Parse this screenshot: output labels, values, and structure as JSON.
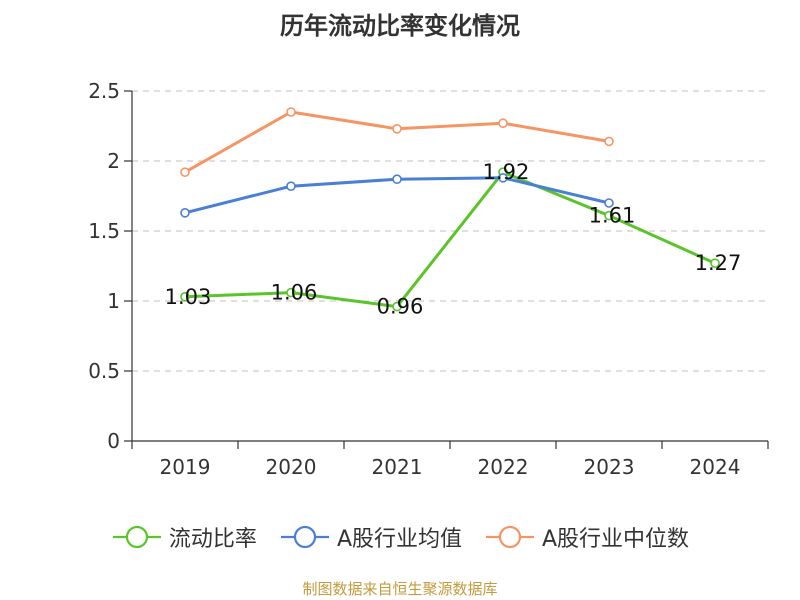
{
  "chart_data": {
    "type": "line",
    "title": "历年流动比率变化情况",
    "categories": [
      "2019",
      "2020",
      "2021",
      "2022",
      "2023",
      "2024"
    ],
    "ylim": [
      0,
      2.5
    ],
    "yticks": [
      "0",
      "0.5",
      "1",
      "1.5",
      "2",
      "2.5"
    ],
    "grid": true,
    "legend_position": "bottom",
    "series": [
      {
        "name": "流动比率",
        "color": "#5ac42a",
        "values": [
          1.03,
          1.06,
          0.96,
          1.92,
          1.61,
          1.27
        ],
        "labels": [
          "1.03",
          "1.06",
          "0.96",
          "1.92",
          "1.61",
          "1.27"
        ]
      },
      {
        "name": "A股行业均值",
        "color": "#4a7fd6",
        "values": [
          1.63,
          1.82,
          1.87,
          1.88,
          1.7,
          null
        ]
      },
      {
        "name": "A股行业中位数",
        "color": "#f59563",
        "values": [
          1.92,
          2.35,
          2.23,
          2.27,
          2.14,
          null
        ]
      }
    ]
  },
  "source": "制图数据来自恒生聚源数据库"
}
